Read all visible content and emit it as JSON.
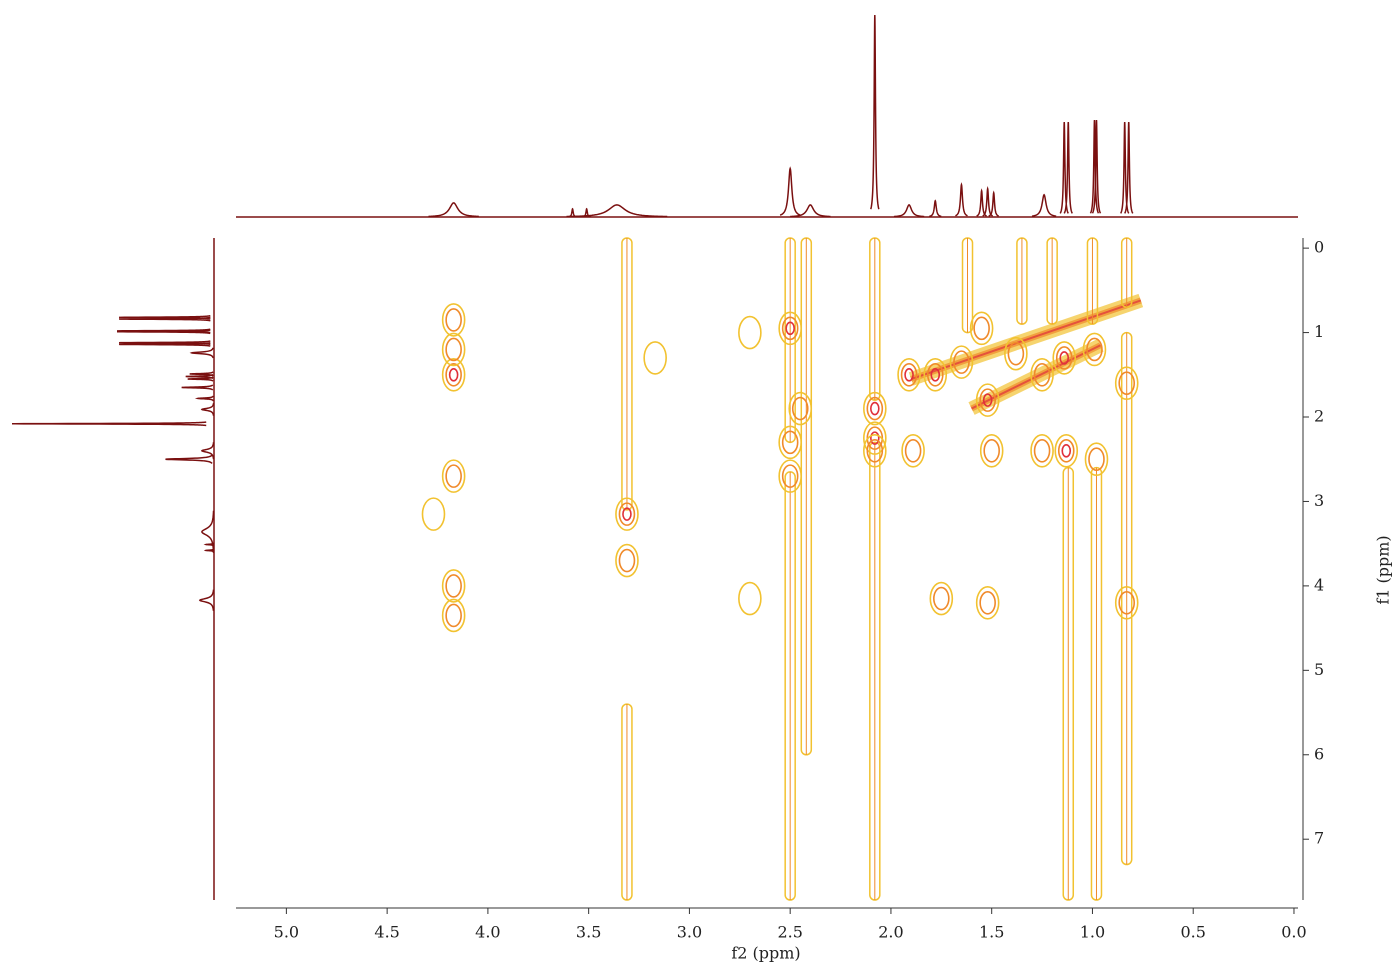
{
  "chart_data": {
    "type": "nmr2d",
    "x_label": "f2 (ppm)",
    "y_label": "f1 (ppm)",
    "xlim": [
      5.25,
      -0.02
    ],
    "ylim": [
      -0.12,
      7.72
    ],
    "xticks": [
      {
        "value": 5,
        "label": "5.0"
      },
      {
        "value": 4.5,
        "label": "4.5"
      },
      {
        "value": 4,
        "label": "4.0"
      },
      {
        "value": 3.5,
        "label": "3.5"
      },
      {
        "value": 3,
        "label": "3.0"
      },
      {
        "value": 2.5,
        "label": "2.5"
      },
      {
        "value": 2,
        "label": "2.0"
      },
      {
        "value": 1.5,
        "label": "1.5"
      },
      {
        "value": 1,
        "label": "1.0"
      },
      {
        "value": 0.5,
        "label": "0.5"
      },
      {
        "value": 0,
        "label": "0.0"
      }
    ],
    "yticks": [
      0,
      1,
      2,
      3,
      4,
      5,
      6,
      7
    ],
    "trace_color": "#7a1010",
    "level_colors": [
      "#f2c230",
      "#f08a2a",
      "#e0303a"
    ],
    "projection": {
      "x": [
        4.17,
        3.58,
        3.51,
        3.36,
        2.5,
        2.4,
        2.08,
        1.91,
        1.78,
        1.65,
        1.55,
        1.52,
        1.49,
        1.24,
        1.14,
        1.12,
        0.99,
        0.98,
        0.84,
        0.82
      ],
      "height": [
        7,
        4,
        4,
        6,
        24,
        6,
        100,
        6,
        8,
        16,
        13,
        14,
        12,
        11,
        47,
        47,
        48,
        48,
        47,
        47
      ],
      "width": [
        0.025,
        0.004,
        0.004,
        0.05,
        0.01,
        0.02,
        0.004,
        0.015,
        0.006,
        0.006,
        0.005,
        0.005,
        0.005,
        0.012,
        0.004,
        0.004,
        0.004,
        0.004,
        0.004,
        0.004
      ]
    },
    "cross_peaks": {
      "x": [
        4.17,
        4.17,
        4.17,
        4.17,
        4.17,
        4.17,
        4.27,
        3.31,
        3.31,
        3.17,
        2.5,
        2.45,
        2.5,
        2.5,
        2.08,
        2.08,
        2.08,
        1.91,
        1.78,
        1.65,
        1.55,
        1.52,
        1.38,
        1.25,
        1.14,
        0.98,
        1.13,
        0.99,
        0.83,
        0.83,
        1.75,
        1.52,
        1.89,
        2.7,
        2.7,
        1.5,
        1.25
      ],
      "y": [
        0.85,
        1.5,
        1.2,
        2.7,
        4.0,
        4.35,
        3.15,
        3.15,
        3.7,
        1.3,
        0.95,
        1.9,
        2.3,
        2.7,
        1.9,
        2.25,
        2.4,
        1.5,
        1.5,
        1.35,
        0.95,
        1.8,
        1.25,
        1.5,
        1.3,
        2.5,
        2.4,
        1.2,
        1.6,
        4.2,
        4.15,
        4.2,
        2.4,
        4.15,
        1.0,
        2.4,
        2.4
      ],
      "level": [
        2,
        3,
        2,
        2,
        2,
        2,
        1,
        3,
        2,
        1,
        3,
        2,
        2,
        2,
        3,
        3,
        2,
        3,
        3,
        2,
        2,
        3,
        2,
        2,
        3,
        2,
        3,
        2,
        2,
        2,
        2,
        2,
        2,
        1,
        1,
        2,
        2
      ]
    },
    "streaks": {
      "x": [
        3.31,
        3.31,
        2.5,
        2.5,
        2.42,
        2.08,
        2.08,
        1.62,
        1.12,
        0.98,
        0.83,
        1.0,
        0.83,
        1.35,
        1.2
      ],
      "y_start": [
        -0.12,
        5.4,
        -0.12,
        2.65,
        -0.12,
        -0.12,
        2.3,
        -0.12,
        2.6,
        2.6,
        1.0,
        -0.12,
        -0.12,
        -0.12,
        -0.12
      ],
      "y_end": [
        3.1,
        7.72,
        2.3,
        7.72,
        6.0,
        1.8,
        7.72,
        1.0,
        7.72,
        7.72,
        7.3,
        0.9,
        0.7,
        0.9,
        0.9
      ]
    },
    "ridges": {
      "x_start": [
        1.9,
        1.6
      ],
      "y_start": [
        1.55,
        1.9
      ],
      "x_end": [
        0.76,
        0.96
      ],
      "y_end": [
        0.62,
        1.15
      ]
    }
  }
}
